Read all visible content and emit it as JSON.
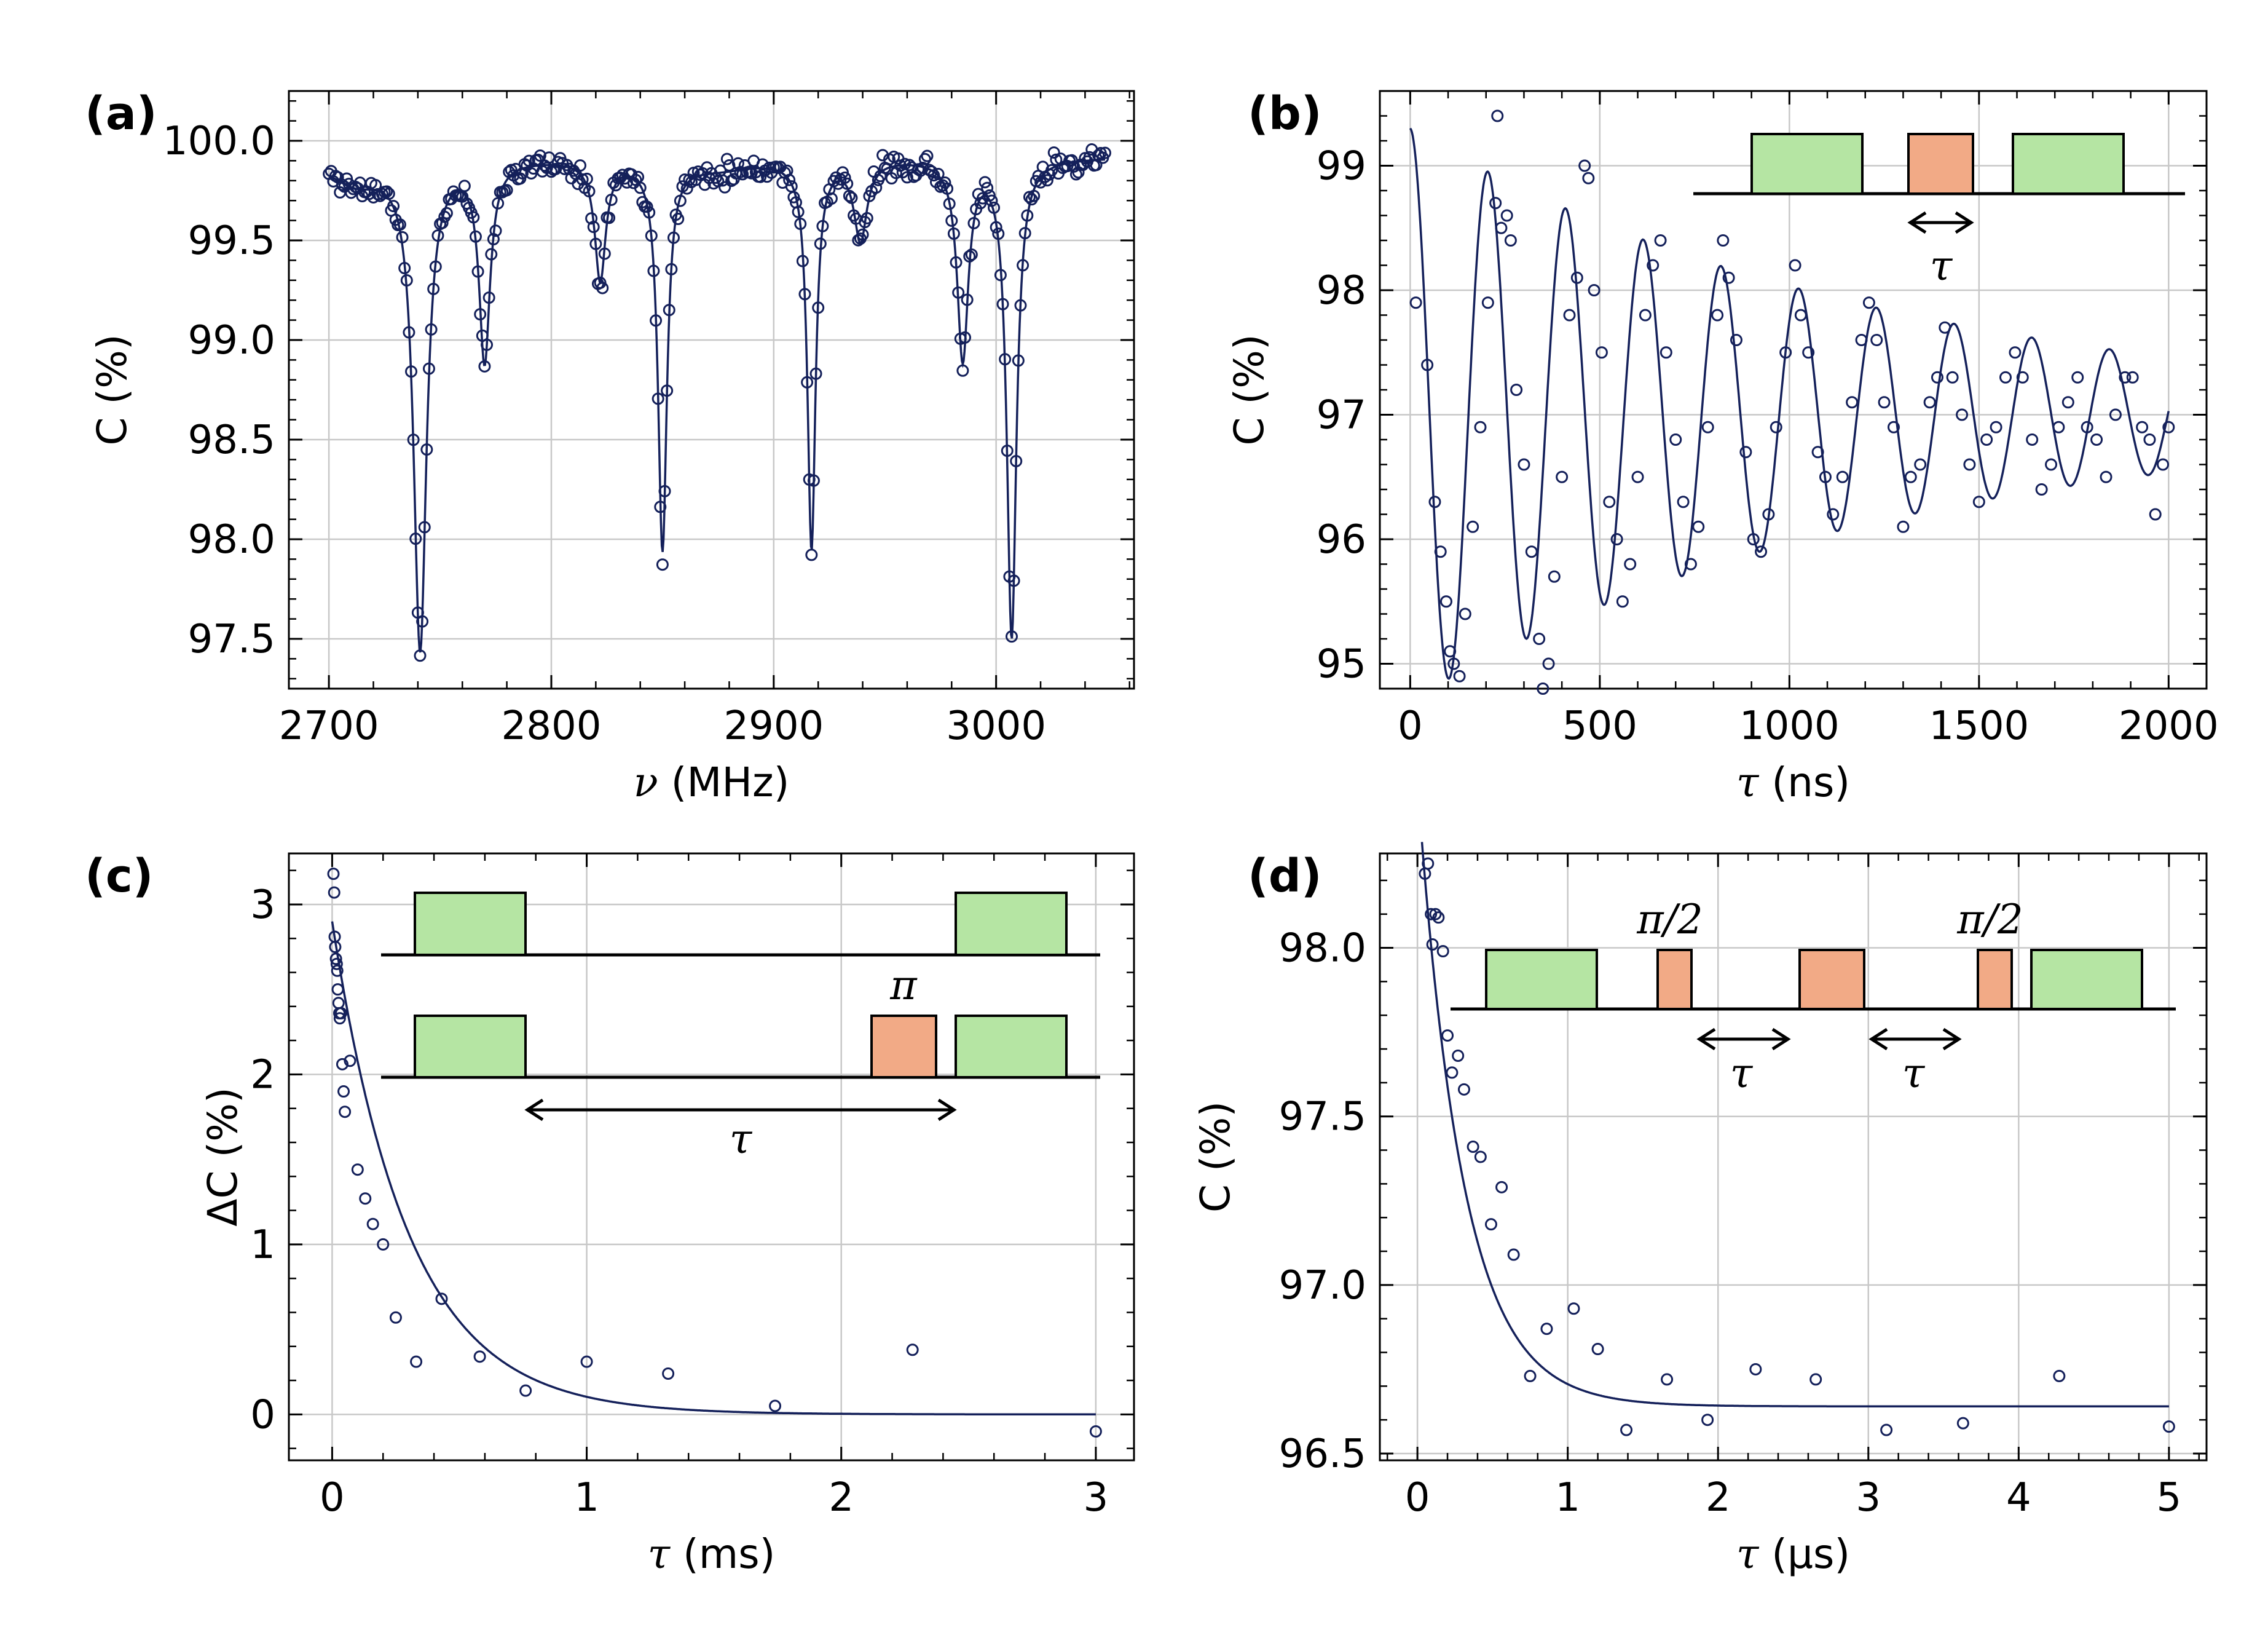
{
  "colors": {
    "data": "#14205a",
    "green_pulse": "#b5e5a3",
    "orange_pulse": "#f2aa86",
    "grid": "#c8c8c8"
  },
  "chart_data": [
    {
      "id": "a",
      "type": "scatter",
      "panel_label": "(a)",
      "xlabel_sym": "ν",
      "xlabel_unit": " (MHz)",
      "ylabel": "C (%)",
      "xlim": [
        2682,
        3062
      ],
      "ylim": [
        97.25,
        100.25
      ],
      "xticks": [
        2700,
        2800,
        2900,
        3000
      ],
      "yticks": [
        97.5,
        98.0,
        98.5,
        99.0,
        99.5,
        100.0
      ],
      "ytick_labels": [
        "97.5",
        "98.0",
        "98.5",
        "99.0",
        "99.5",
        "100.0"
      ],
      "model": {
        "kind": "lorentzian_sum",
        "baseline": 99.92,
        "dips": [
          [
            2741,
            2.45,
            3.5
          ],
          [
            2770,
            1.0,
            3.0
          ],
          [
            2822,
            0.6,
            3.0
          ],
          [
            2850,
            1.95,
            2.4
          ],
          [
            2917,
            1.95,
            2.2
          ],
          [
            2939,
            0.4,
            3.5
          ],
          [
            2985,
            1.0,
            3.0
          ],
          [
            3007,
            2.4,
            2.6
          ],
          [
            2712,
            0.12,
            15
          ],
          [
            2875,
            0.05,
            20
          ]
        ]
      },
      "x_range": [
        2700,
        3049
      ],
      "n_points": 350,
      "seed": 11,
      "noise": 0.03
    },
    {
      "id": "b",
      "type": "scatter",
      "panel_label": "(b)",
      "xlabel_sym": "τ",
      "xlabel_unit": " (ns)",
      "ylabel": "C (%)",
      "xlim": [
        -80,
        2100
      ],
      "ylim": [
        94.8,
        99.6
      ],
      "xticks": [
        0,
        500,
        1000,
        1500,
        2000
      ],
      "yticks": [
        95,
        96,
        97,
        98,
        99
      ],
      "ytick_labels": [
        "95",
        "96",
        "97",
        "98",
        "99"
      ],
      "model": {
        "kind": "damped_cos",
        "offset": 97.0,
        "amp": 2.3,
        "freq": 0.00488,
        "tau": 1250,
        "phase": 0
      },
      "x_range": [
        0,
        2000
      ],
      "points": [
        [
          15,
          97.9
        ],
        [
          45,
          97.4
        ],
        [
          65,
          96.3
        ],
        [
          80,
          95.9
        ],
        [
          95,
          95.5
        ],
        [
          105,
          95.1
        ],
        [
          115,
          95.0
        ],
        [
          130,
          94.9
        ],
        [
          145,
          95.4
        ],
        [
          165,
          96.1
        ],
        [
          185,
          96.9
        ],
        [
          205,
          97.9
        ],
        [
          225,
          98.7
        ],
        [
          230,
          99.4
        ],
        [
          240,
          98.5
        ],
        [
          255,
          98.6
        ],
        [
          265,
          98.4
        ],
        [
          280,
          97.2
        ],
        [
          300,
          96.6
        ],
        [
          320,
          95.9
        ],
        [
          340,
          95.2
        ],
        [
          350,
          94.8
        ],
        [
          365,
          95.0
        ],
        [
          380,
          95.7
        ],
        [
          400,
          96.5
        ],
        [
          420,
          97.8
        ],
        [
          440,
          98.1
        ],
        [
          460,
          99.0
        ],
        [
          470,
          98.9
        ],
        [
          485,
          98.0
        ],
        [
          505,
          97.5
        ],
        [
          525,
          96.3
        ],
        [
          545,
          96.0
        ],
        [
          560,
          95.5
        ],
        [
          580,
          95.8
        ],
        [
          600,
          96.5
        ],
        [
          620,
          97.8
        ],
        [
          640,
          98.2
        ],
        [
          660,
          98.4
        ],
        [
          675,
          97.5
        ],
        [
          700,
          96.8
        ],
        [
          720,
          96.3
        ],
        [
          740,
          95.8
        ],
        [
          760,
          96.1
        ],
        [
          785,
          96.9
        ],
        [
          810,
          97.8
        ],
        [
          825,
          98.4
        ],
        [
          840,
          98.1
        ],
        [
          860,
          97.6
        ],
        [
          885,
          96.7
        ],
        [
          905,
          96.0
        ],
        [
          925,
          95.9
        ],
        [
          945,
          96.2
        ],
        [
          965,
          96.9
        ],
        [
          990,
          97.5
        ],
        [
          1015,
          98.2
        ],
        [
          1030,
          97.8
        ],
        [
          1050,
          97.5
        ],
        [
          1075,
          96.7
        ],
        [
          1095,
          96.5
        ],
        [
          1115,
          96.2
        ],
        [
          1140,
          96.5
        ],
        [
          1165,
          97.1
        ],
        [
          1190,
          97.6
        ],
        [
          1210,
          97.9
        ],
        [
          1230,
          97.6
        ],
        [
          1250,
          97.1
        ],
        [
          1275,
          96.9
        ],
        [
          1300,
          96.1
        ],
        [
          1320,
          96.5
        ],
        [
          1345,
          96.6
        ],
        [
          1370,
          97.1
        ],
        [
          1390,
          97.3
        ],
        [
          1410,
          97.7
        ],
        [
          1430,
          97.3
        ],
        [
          1455,
          97.0
        ],
        [
          1475,
          96.6
        ],
        [
          1500,
          96.3
        ],
        [
          1520,
          96.8
        ],
        [
          1545,
          96.9
        ],
        [
          1570,
          97.3
        ],
        [
          1595,
          97.5
        ],
        [
          1615,
          97.3
        ],
        [
          1640,
          96.8
        ],
        [
          1665,
          96.4
        ],
        [
          1690,
          96.6
        ],
        [
          1710,
          96.9
        ],
        [
          1735,
          97.1
        ],
        [
          1760,
          97.3
        ],
        [
          1785,
          96.9
        ],
        [
          1810,
          96.8
        ],
        [
          1835,
          96.5
        ],
        [
          1860,
          97.0
        ],
        [
          1885,
          97.3
        ],
        [
          1905,
          97.3
        ],
        [
          1930,
          96.9
        ],
        [
          1950,
          96.8
        ],
        [
          1965,
          96.2
        ],
        [
          1985,
          96.6
        ],
        [
          2000,
          96.9
        ]
      ],
      "inset": {
        "mode": "b",
        "y": 315,
        "line": [
          2755,
          3555
        ],
        "pulses": [
          [
            2850,
            3030,
            "green",
            218
          ],
          [
            3105,
            3210,
            "orange",
            218
          ],
          [
            3275,
            3455,
            "green",
            218
          ]
        ],
        "arrows": [
          [
            3105,
            3210,
            362
          ]
        ],
        "labels": [
          {
            "key": "tau",
            "x": 3158,
            "y": 455
          }
        ]
      },
      "tau": "τ"
    },
    {
      "id": "c",
      "type": "scatter",
      "panel_label": "(c)",
      "xlabel_sym": "τ",
      "xlabel_unit": " (ms)",
      "ylabel": "ΔC (%)",
      "xlim": [
        -0.17,
        3.15
      ],
      "ylim": [
        -0.27,
        3.3
      ],
      "xticks": [
        0,
        1,
        2,
        3
      ],
      "yticks": [
        0,
        1,
        2,
        3
      ],
      "ytick_labels": [
        "0",
        "1",
        "2",
        "3"
      ],
      "model": {
        "kind": "exp",
        "offset": 0.0,
        "amp": 2.9,
        "tau": 0.3
      },
      "x_range": [
        0,
        3.0
      ],
      "points": [
        [
          0.005,
          3.18
        ],
        [
          0.008,
          3.07
        ],
        [
          0.01,
          2.81
        ],
        [
          0.012,
          2.75
        ],
        [
          0.015,
          2.68
        ],
        [
          0.018,
          2.65
        ],
        [
          0.02,
          2.61
        ],
        [
          0.022,
          2.5
        ],
        [
          0.025,
          2.42
        ],
        [
          0.028,
          2.36
        ],
        [
          0.03,
          2.33
        ],
        [
          0.035,
          2.36
        ],
        [
          0.04,
          2.06
        ],
        [
          0.045,
          1.9
        ],
        [
          0.05,
          1.78
        ],
        [
          0.07,
          2.08
        ],
        [
          0.1,
          1.44
        ],
        [
          0.13,
          1.27
        ],
        [
          0.16,
          1.12
        ],
        [
          0.2,
          1.0
        ],
        [
          0.25,
          0.57
        ],
        [
          0.33,
          0.31
        ],
        [
          0.43,
          0.68
        ],
        [
          0.58,
          0.34
        ],
        [
          0.76,
          0.14
        ],
        [
          1.0,
          0.31
        ],
        [
          1.32,
          0.24
        ],
        [
          1.74,
          0.05
        ],
        [
          2.28,
          0.38
        ],
        [
          3.0,
          -0.1
        ]
      ],
      "inset": {
        "mode": "c",
        "lines": [
          [
            620,
            1790,
            1553
          ],
          [
            620,
            1790,
            1752
          ]
        ],
        "pulses": [
          [
            675,
            855,
            "green",
            1452
          ],
          [
            1555,
            1735,
            "green",
            1452
          ],
          [
            675,
            855,
            "green",
            1652
          ],
          [
            1418,
            1523,
            "orange",
            1652
          ],
          [
            1555,
            1735,
            "green",
            1652
          ]
        ],
        "arrows": [
          [
            855,
            1555,
            1805
          ]
        ],
        "labels": [
          {
            "key": "pi",
            "x": 1470,
            "y": 1625
          },
          {
            "key": "tau",
            "x": 1205,
            "y": 1875
          }
        ]
      },
      "tau": "τ",
      "pi": "π"
    },
    {
      "id": "d",
      "type": "scatter",
      "panel_label": "(d)",
      "xlabel_sym": "τ",
      "xlabel_unit": " (μs)",
      "ylabel": "C (%)",
      "xlim": [
        -0.25,
        5.25
      ],
      "ylim": [
        96.48,
        98.28
      ],
      "xticks": [
        0,
        1,
        2,
        3,
        4,
        5
      ],
      "yticks": [
        96.5,
        97.0,
        97.5,
        98.0
      ],
      "ytick_labels": [
        "96.5",
        "97.0",
        "97.5",
        "98.0"
      ],
      "model": {
        "kind": "exp",
        "offset": 96.64,
        "amp": 1.85,
        "tau": 0.3
      },
      "x_range": [
        0.03,
        5.0
      ],
      "points": [
        [
          0.05,
          98.22
        ],
        [
          0.07,
          98.25
        ],
        [
          0.09,
          98.1
        ],
        [
          0.1,
          98.01
        ],
        [
          0.12,
          98.1
        ],
        [
          0.14,
          98.09
        ],
        [
          0.17,
          97.99
        ],
        [
          0.2,
          97.74
        ],
        [
          0.23,
          97.63
        ],
        [
          0.27,
          97.68
        ],
        [
          0.31,
          97.58
        ],
        [
          0.37,
          97.41
        ],
        [
          0.42,
          97.38
        ],
        [
          0.49,
          97.18
        ],
        [
          0.56,
          97.29
        ],
        [
          0.64,
          97.09
        ],
        [
          0.75,
          96.73
        ],
        [
          0.86,
          96.87
        ],
        [
          1.04,
          96.93
        ],
        [
          1.2,
          96.81
        ],
        [
          1.39,
          96.57
        ],
        [
          1.66,
          96.72
        ],
        [
          1.93,
          96.6
        ],
        [
          2.25,
          96.75
        ],
        [
          2.65,
          96.72
        ],
        [
          3.12,
          96.57
        ],
        [
          3.63,
          96.59
        ],
        [
          4.27,
          96.73
        ],
        [
          5.0,
          96.58
        ]
      ],
      "inset": {
        "mode": "d",
        "line": [
          2360,
          3540,
          1641
        ],
        "pulses": [
          [
            2418,
            2598,
            "green",
            1545
          ],
          [
            2697,
            2752,
            "orange",
            1545
          ],
          [
            2928,
            3033,
            "orange",
            1545
          ],
          [
            3218,
            3273,
            "orange",
            1545
          ],
          [
            3305,
            3485,
            "green",
            1545
          ]
        ],
        "arrows": [
          [
            2762,
            2912,
            1690
          ],
          [
            3042,
            3190,
            1690
          ]
        ],
        "labels": [
          {
            "key": "pi2",
            "x": 2717,
            "y": 1518
          },
          {
            "key": "pi2",
            "x": 3238,
            "y": 1518
          },
          {
            "key": "tau",
            "x": 2833,
            "y": 1768
          },
          {
            "key": "tau",
            "x": 3113,
            "y": 1768
          }
        ]
      },
      "tau": "τ",
      "pi2": "π/2"
    }
  ]
}
